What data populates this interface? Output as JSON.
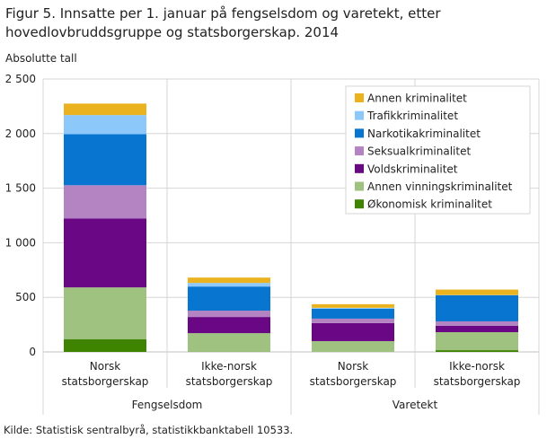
{
  "figure": {
    "title": "Figur 5. Innsatte per 1. januar på fengselsdom og varetekt, etter hovedlovbruddsgruppe og statsborgerskap. 2014",
    "unit_label": "Absolutte tall",
    "source": "Kilde: Statistisk sentralbyrå, statistikkbanktabell 10533."
  },
  "chart_data": {
    "type": "bar",
    "stacked": true,
    "title": "Figur 5. Innsatte per 1. januar på fengselsdom og varetekt, etter hovedlovbruddsgruppe og statsborgerskap. 2014",
    "ylabel": "Absolutte tall",
    "ylim": [
      0,
      2500
    ],
    "yticks": [
      0,
      500,
      1000,
      1500,
      2000,
      2500
    ],
    "ytick_labels": [
      "0",
      "500",
      "1 000",
      "1 500",
      "2 000",
      "2 500"
    ],
    "categories": [
      [
        "Norsk",
        "statsborgerskap"
      ],
      [
        "Ikke-norsk",
        "statsborgerskap"
      ],
      [
        "Norsk",
        "statsborgerskap"
      ],
      [
        "Ikke-norsk",
        "statsborgerskap"
      ]
    ],
    "groups": [
      {
        "label": "Fengselsdom",
        "span": [
          0,
          1
        ]
      },
      {
        "label": "Varetekt",
        "span": [
          2,
          3
        ]
      }
    ],
    "legend_position": "top-right",
    "grid": true,
    "series": [
      {
        "name": "Økonomisk kriminalitet",
        "color": "#3f8400",
        "values": [
          115,
          2,
          0,
          16
        ]
      },
      {
        "name": "Annen vinningskriminalitet",
        "color": "#9fc280",
        "values": [
          476,
          170,
          99,
          165
        ]
      },
      {
        "name": "Voldskriminalitet",
        "color": "#690785",
        "values": [
          632,
          148,
          165,
          58
        ]
      },
      {
        "name": "Seksualkriminalitet",
        "color": "#b484c2",
        "values": [
          304,
          58,
          41,
          41
        ]
      },
      {
        "name": "Narkotikakriminalitet",
        "color": "#0875d0",
        "values": [
          468,
          221,
          91,
          239
        ]
      },
      {
        "name": "Trafikkriminalitet",
        "color": "#8dc8fa",
        "values": [
          175,
          33,
          8,
          2
        ]
      },
      {
        "name": "Annen kriminalitet",
        "color": "#ebb21f",
        "values": [
          105,
          49,
          33,
          50
        ]
      }
    ]
  }
}
